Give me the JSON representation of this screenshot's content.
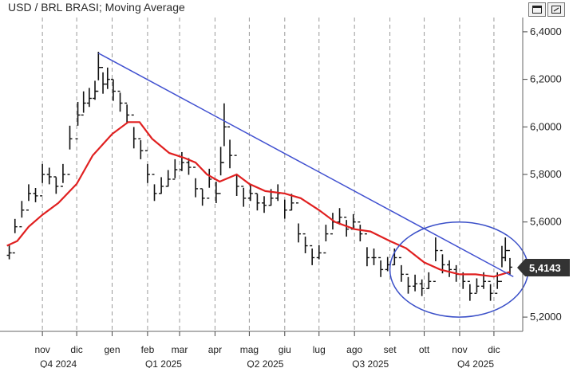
{
  "window": {
    "title": "USD / BRL BRASI; Moving Average",
    "buttons": [
      "maximize-icon",
      "settings-icon"
    ]
  },
  "colors": {
    "price": "#111111",
    "moving_average": "#e02020",
    "trendline": "#4050d0",
    "highlight_ellipse": "#3a4fc8",
    "grid": "#9a9a9a",
    "last_label_bg": "#333333"
  },
  "chart_data": {
    "type": "line",
    "title": "USD / BRL BRASI; Moving Average",
    "xlabel": "",
    "ylabel": "",
    "ylim": [
      5.14,
      6.46
    ],
    "yticks": [
      "6,4000",
      "6,2000",
      "6,0000",
      "5,8000",
      "5,6000",
      "5,4000",
      "5,2000"
    ],
    "ytick_values": [
      6.4,
      6.2,
      6.0,
      5.8,
      5.6,
      5.4,
      5.2
    ],
    "month_labels": [
      "nov",
      "dic",
      "gen",
      "feb",
      "mar",
      "apr",
      "mag",
      "giu",
      "lug",
      "ago",
      "set",
      "ott",
      "nov",
      "dic"
    ],
    "quarter_labels": [
      "Q4 2024",
      "Q1 2025",
      "Q2 2025",
      "Q3 2025",
      "Q4 2025"
    ],
    "last_value_label": "5,4143",
    "last_value": 5.4143,
    "grid": "vertical dashed at month starts",
    "series": [
      {
        "name": "USD / BRL BRASI",
        "style": "bars",
        "x": [
          "2024-10-03",
          "2024-10-08",
          "2024-10-14",
          "2024-10-20",
          "2024-10-26",
          "2024-11-01",
          "2024-11-07",
          "2024-11-13",
          "2024-11-19",
          "2024-11-25",
          "2024-12-02",
          "2024-12-07",
          "2024-12-12",
          "2024-12-17",
          "2024-12-20",
          "2024-12-24",
          "2024-12-28",
          "2025-01-02",
          "2025-01-08",
          "2025-01-14",
          "2025-01-20",
          "2025-01-26",
          "2025-02-01",
          "2025-02-07",
          "2025-02-13",
          "2025-02-19",
          "2025-02-25",
          "2025-03-03",
          "2025-03-09",
          "2025-03-15",
          "2025-03-21",
          "2025-03-27",
          "2025-04-02",
          "2025-04-06",
          "2025-04-09",
          "2025-04-14",
          "2025-04-20",
          "2025-04-26",
          "2025-05-02",
          "2025-05-08",
          "2025-05-14",
          "2025-05-20",
          "2025-05-26",
          "2025-06-01",
          "2025-06-07",
          "2025-06-13",
          "2025-06-19",
          "2025-06-25",
          "2025-07-01",
          "2025-07-07",
          "2025-07-13",
          "2025-07-19",
          "2025-07-25",
          "2025-07-31",
          "2025-08-06",
          "2025-08-12",
          "2025-08-18",
          "2025-08-24",
          "2025-08-30",
          "2025-09-05",
          "2025-09-11",
          "2025-09-17",
          "2025-09-23",
          "2025-09-29",
          "2025-10-05",
          "2025-10-11",
          "2025-10-17",
          "2025-10-23",
          "2025-10-29",
          "2025-11-04",
          "2025-11-10",
          "2025-11-16",
          "2025-11-22",
          "2025-11-28",
          "2025-12-04",
          "2025-12-08",
          "2025-12-11",
          "2025-12-15"
        ],
        "close": [
          5.47,
          5.58,
          5.65,
          5.72,
          5.71,
          5.8,
          5.79,
          5.75,
          5.8,
          5.95,
          6.05,
          6.1,
          6.12,
          6.15,
          6.25,
          6.18,
          6.2,
          6.15,
          6.1,
          6.05,
          5.95,
          5.9,
          5.8,
          5.72,
          5.75,
          5.78,
          5.82,
          5.85,
          5.83,
          5.74,
          5.7,
          5.78,
          5.72,
          5.85,
          6.0,
          5.88,
          5.75,
          5.7,
          5.72,
          5.68,
          5.67,
          5.7,
          5.72,
          5.65,
          5.68,
          5.55,
          5.5,
          5.45,
          5.47,
          5.55,
          5.6,
          5.62,
          5.57,
          5.6,
          5.55,
          5.45,
          5.45,
          5.4,
          5.42,
          5.45,
          5.38,
          5.33,
          5.34,
          5.32,
          5.35,
          5.48,
          5.42,
          5.4,
          5.38,
          5.35,
          5.3,
          5.33,
          5.35,
          5.3,
          5.35,
          5.45,
          5.48,
          5.41
        ],
        "range": [
          0.06,
          0.06,
          0.07,
          0.07,
          0.06,
          0.08,
          0.07,
          0.07,
          0.08,
          0.1,
          0.1,
          0.09,
          0.08,
          0.08,
          0.12,
          0.09,
          0.09,
          0.09,
          0.08,
          0.08,
          0.09,
          0.08,
          0.08,
          0.07,
          0.07,
          0.07,
          0.08,
          0.08,
          0.07,
          0.08,
          0.07,
          0.08,
          0.09,
          0.12,
          0.18,
          0.12,
          0.09,
          0.08,
          0.07,
          0.07,
          0.07,
          0.07,
          0.07,
          0.08,
          0.07,
          0.08,
          0.07,
          0.07,
          0.06,
          0.07,
          0.07,
          0.07,
          0.07,
          0.06,
          0.07,
          0.08,
          0.07,
          0.07,
          0.06,
          0.07,
          0.07,
          0.07,
          0.07,
          0.07,
          0.07,
          0.1,
          0.08,
          0.07,
          0.07,
          0.07,
          0.07,
          0.06,
          0.07,
          0.07,
          0.07,
          0.09,
          0.1,
          0.07
        ]
      },
      {
        "name": "Moving Average",
        "style": "line",
        "x": [
          "2024-10-01",
          "2024-10-10",
          "2024-10-20",
          "2024-11-01",
          "2024-11-15",
          "2024-12-01",
          "2024-12-15",
          "2025-01-01",
          "2025-01-15",
          "2025-01-25",
          "2025-02-05",
          "2025-02-20",
          "2025-03-05",
          "2025-03-15",
          "2025-03-25",
          "2025-04-05",
          "2025-04-20",
          "2025-05-01",
          "2025-05-15",
          "2025-06-01",
          "2025-06-15",
          "2025-07-01",
          "2025-07-15",
          "2025-08-01",
          "2025-08-15",
          "2025-09-01",
          "2025-09-15",
          "2025-10-01",
          "2025-10-15",
          "2025-11-01",
          "2025-11-15",
          "2025-12-01",
          "2025-12-15"
        ],
        "values": [
          5.5,
          5.52,
          5.58,
          5.63,
          5.68,
          5.76,
          5.88,
          5.97,
          6.02,
          6.02,
          5.95,
          5.89,
          5.87,
          5.85,
          5.8,
          5.77,
          5.8,
          5.76,
          5.73,
          5.72,
          5.7,
          5.65,
          5.6,
          5.57,
          5.56,
          5.52,
          5.49,
          5.43,
          5.4,
          5.38,
          5.38,
          5.37,
          5.39
        ]
      },
      {
        "name": "Trendline",
        "style": "line",
        "x": [
          "2024-12-20",
          "2025-12-18"
        ],
        "values": [
          6.31,
          5.37
        ]
      }
    ],
    "annotations": [
      {
        "type": "ellipse",
        "x_from": "2025-09-01",
        "x_to": "2025-12-31",
        "y_from": 5.2,
        "y_to": 5.6
      }
    ]
  }
}
